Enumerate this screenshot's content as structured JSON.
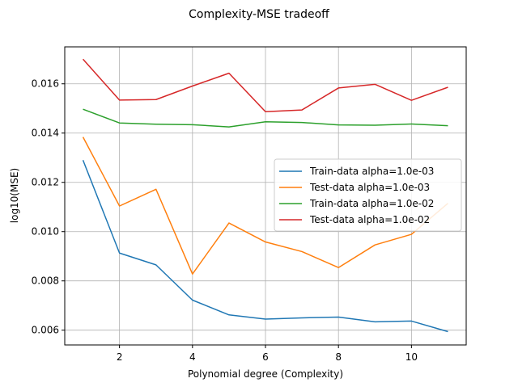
{
  "chart_data": {
    "type": "line",
    "title": "Complexity-MSE tradeoff",
    "xlabel": "Polynomial degree (Complexity)",
    "ylabel": "log10(MSE)",
    "xlim": [
      0.5,
      11.5
    ],
    "ylim": [
      0.0054,
      0.0175
    ],
    "xticks": [
      2,
      4,
      6,
      8,
      10
    ],
    "yticks": [
      0.006,
      0.008,
      0.01,
      0.012,
      0.014,
      0.016
    ],
    "xtick_labels": [
      "2",
      "4",
      "6",
      "8",
      "10"
    ],
    "ytick_labels": [
      "0.006",
      "0.008",
      "0.010",
      "0.012",
      "0.014",
      "0.016"
    ],
    "grid": true,
    "legend_position": "center-right",
    "x": [
      1,
      2,
      3,
      4,
      5,
      6,
      7,
      8,
      9,
      10,
      11
    ],
    "series": [
      {
        "name": "Train-data alpha=1.0e-03",
        "color": "#1f77b4",
        "values": [
          0.0129,
          0.00913,
          0.00865,
          0.00722,
          0.00662,
          0.00645,
          0.0065,
          0.00653,
          0.00634,
          0.00637,
          0.00594
        ]
      },
      {
        "name": "Test-data alpha=1.0e-03",
        "color": "#ff7f0e",
        "values": [
          0.01384,
          0.01104,
          0.01172,
          0.00828,
          0.01035,
          0.00958,
          0.00919,
          0.00854,
          0.00946,
          0.00989,
          0.01115
        ]
      },
      {
        "name": "Train-data alpha=1.0e-02",
        "color": "#2ca02c",
        "values": [
          0.01497,
          0.01441,
          0.01436,
          0.01434,
          0.01425,
          0.01446,
          0.01443,
          0.01433,
          0.01432,
          0.01437,
          0.0143
        ]
      },
      {
        "name": "Test-data alpha=1.0e-02",
        "color": "#d62728",
        "values": [
          0.017,
          0.01534,
          0.01536,
          0.01591,
          0.01643,
          0.01487,
          0.01494,
          0.01583,
          0.01598,
          0.01533,
          0.01586
        ]
      }
    ]
  }
}
